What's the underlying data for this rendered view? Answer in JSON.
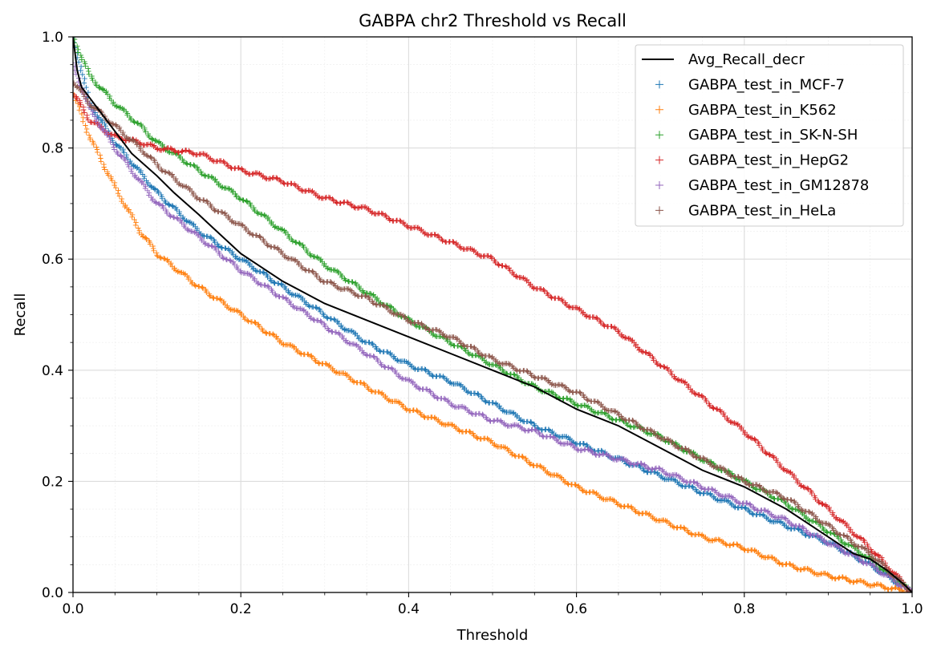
{
  "chart_data": {
    "type": "scatter",
    "title": "GABPA chr2 Threshold vs Recall",
    "xlabel": "Threshold",
    "ylabel": "Recall",
    "xlim": [
      0.0,
      1.0
    ],
    "ylim": [
      0.0,
      1.0
    ],
    "xticks": [
      "0.0",
      "0.2",
      "0.4",
      "0.6",
      "0.8",
      "1.0"
    ],
    "yticks": [
      "0.0",
      "0.2",
      "0.4",
      "0.6",
      "0.8",
      "1.0"
    ],
    "grid": true,
    "minor_grid": true,
    "legend_position": "top-right",
    "line": {
      "name": "Avg_Recall_decr",
      "color": "#000000",
      "x": [
        0.0,
        0.005,
        0.01,
        0.02,
        0.03,
        0.05,
        0.07,
        0.1,
        0.12,
        0.15,
        0.2,
        0.25,
        0.3,
        0.35,
        0.4,
        0.45,
        0.5,
        0.55,
        0.6,
        0.65,
        0.7,
        0.75,
        0.8,
        0.85,
        0.9,
        0.93,
        0.95,
        0.97,
        0.99,
        1.0
      ],
      "y": [
        1.0,
        0.94,
        0.91,
        0.89,
        0.87,
        0.83,
        0.79,
        0.75,
        0.72,
        0.68,
        0.61,
        0.56,
        0.52,
        0.49,
        0.46,
        0.43,
        0.4,
        0.37,
        0.33,
        0.3,
        0.26,
        0.22,
        0.19,
        0.15,
        0.1,
        0.07,
        0.06,
        0.04,
        0.015,
        0.0
      ]
    },
    "series": [
      {
        "name": "GABPA_test_in_MCF-7",
        "color": "#1f77b4",
        "x": [
          0.0,
          0.02,
          0.05,
          0.1,
          0.15,
          0.2,
          0.25,
          0.3,
          0.35,
          0.4,
          0.45,
          0.5,
          0.55,
          0.6,
          0.65,
          0.7,
          0.75,
          0.8,
          0.85,
          0.9,
          0.95,
          0.98,
          1.0
        ],
        "y": [
          1.0,
          0.88,
          0.81,
          0.72,
          0.65,
          0.6,
          0.55,
          0.5,
          0.45,
          0.41,
          0.38,
          0.34,
          0.3,
          0.27,
          0.24,
          0.21,
          0.18,
          0.15,
          0.12,
          0.09,
          0.05,
          0.02,
          0.0
        ]
      },
      {
        "name": "GABPA_test_in_K562",
        "color": "#ff7f0e",
        "x": [
          0.0,
          0.02,
          0.05,
          0.08,
          0.1,
          0.15,
          0.2,
          0.25,
          0.3,
          0.35,
          0.4,
          0.45,
          0.5,
          0.55,
          0.6,
          0.65,
          0.7,
          0.75,
          0.8,
          0.85,
          0.9,
          0.95,
          1.0
        ],
        "y": [
          0.9,
          0.82,
          0.73,
          0.65,
          0.61,
          0.55,
          0.5,
          0.45,
          0.41,
          0.37,
          0.33,
          0.3,
          0.27,
          0.23,
          0.19,
          0.16,
          0.13,
          0.1,
          0.08,
          0.05,
          0.03,
          0.015,
          0.0
        ]
      },
      {
        "name": "GABPA_test_in_SK-N-SH",
        "color": "#2ca02c",
        "x": [
          0.0,
          0.02,
          0.05,
          0.08,
          0.1,
          0.15,
          0.2,
          0.25,
          0.3,
          0.35,
          0.4,
          0.45,
          0.5,
          0.55,
          0.6,
          0.65,
          0.7,
          0.75,
          0.8,
          0.85,
          0.9,
          0.95,
          1.0
        ],
        "y": [
          1.0,
          0.93,
          0.88,
          0.84,
          0.81,
          0.76,
          0.71,
          0.65,
          0.59,
          0.54,
          0.49,
          0.45,
          0.41,
          0.37,
          0.34,
          0.31,
          0.28,
          0.24,
          0.2,
          0.16,
          0.11,
          0.06,
          0.0
        ]
      },
      {
        "name": "GABPA_test_in_HepG2",
        "color": "#d62728",
        "x": [
          0.0,
          0.02,
          0.05,
          0.08,
          0.1,
          0.15,
          0.2,
          0.25,
          0.3,
          0.35,
          0.4,
          0.45,
          0.5,
          0.55,
          0.6,
          0.65,
          0.7,
          0.75,
          0.8,
          0.85,
          0.9,
          0.95,
          1.0
        ],
        "y": [
          0.9,
          0.85,
          0.82,
          0.81,
          0.8,
          0.79,
          0.76,
          0.74,
          0.71,
          0.69,
          0.66,
          0.63,
          0.6,
          0.55,
          0.51,
          0.47,
          0.41,
          0.35,
          0.29,
          0.22,
          0.15,
          0.08,
          0.0
        ]
      },
      {
        "name": "GABPA_test_in_GM12878",
        "color": "#9467bd",
        "x": [
          0.0,
          0.02,
          0.05,
          0.08,
          0.1,
          0.15,
          0.2,
          0.25,
          0.3,
          0.35,
          0.4,
          0.45,
          0.5,
          0.55,
          0.6,
          0.65,
          0.7,
          0.75,
          0.8,
          0.85,
          0.9,
          0.95,
          1.0
        ],
        "y": [
          0.95,
          0.87,
          0.8,
          0.74,
          0.7,
          0.64,
          0.58,
          0.53,
          0.48,
          0.43,
          0.38,
          0.34,
          0.31,
          0.29,
          0.26,
          0.24,
          0.22,
          0.19,
          0.16,
          0.13,
          0.09,
          0.05,
          0.0
        ]
      },
      {
        "name": "GABPA_test_in_HeLa",
        "color": "#8c564b",
        "x": [
          0.0,
          0.02,
          0.05,
          0.08,
          0.1,
          0.15,
          0.2,
          0.25,
          0.3,
          0.35,
          0.4,
          0.45,
          0.5,
          0.55,
          0.6,
          0.65,
          0.7,
          0.75,
          0.8,
          0.85,
          0.9,
          0.95,
          1.0
        ],
        "y": [
          0.92,
          0.88,
          0.84,
          0.8,
          0.77,
          0.71,
          0.66,
          0.61,
          0.56,
          0.53,
          0.49,
          0.46,
          0.42,
          0.39,
          0.36,
          0.32,
          0.28,
          0.24,
          0.2,
          0.17,
          0.12,
          0.07,
          0.0
        ]
      }
    ]
  }
}
